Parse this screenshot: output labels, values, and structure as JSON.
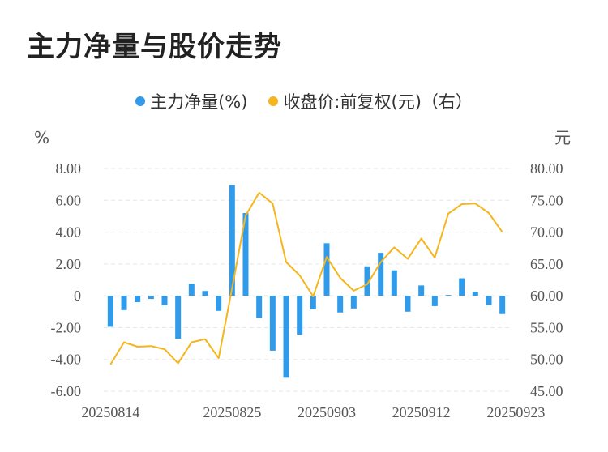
{
  "title": "主力净量与股价走势",
  "legend": [
    {
      "label": "主力净量(%)",
      "color": "#2f9bea"
    },
    {
      "label": "收盘价:前复权(元)（右）",
      "color": "#f5b51c"
    }
  ],
  "chart_data": {
    "type": "bar",
    "left_unit": "%",
    "right_unit": "元",
    "left_ticks": [
      "8.00",
      "6.00",
      "4.00",
      "2.00",
      "0",
      "-2.00",
      "-4.00",
      "-6.00"
    ],
    "right_ticks": [
      "80.00",
      "75.00",
      "70.00",
      "65.00",
      "60.00",
      "55.00",
      "50.00",
      "45.00"
    ],
    "ylim_left": [
      -6,
      8
    ],
    "ylim_right": [
      45,
      80
    ],
    "x_tick_labels": [
      "20250814",
      "20250825",
      "20250903",
      "20250912",
      "20250923"
    ],
    "x_tick_index": [
      0,
      9,
      16,
      23,
      30
    ],
    "series": [
      {
        "name": "主力净量(%)",
        "type": "bar",
        "color": "#2f9bea",
        "values": [
          -1.95,
          -0.9,
          -0.4,
          -0.2,
          -0.6,
          -2.7,
          0.75,
          0.3,
          -0.95,
          6.95,
          5.2,
          -1.4,
          -3.45,
          -5.15,
          -2.45,
          -0.85,
          3.3,
          -1.05,
          -0.8,
          1.85,
          2.7,
          1.6,
          -1.0,
          0.65,
          -0.65,
          0.05,
          1.1,
          0.25,
          -0.6,
          -1.15
        ]
      },
      {
        "name": "收盘价:前复权(元)（右）",
        "type": "line",
        "color": "#f5b51c",
        "values": [
          49.2,
          52.7,
          52.0,
          52.1,
          51.6,
          49.4,
          52.7,
          53.2,
          50.2,
          61.2,
          72.6,
          76.2,
          74.5,
          65.3,
          63.2,
          59.9,
          66.1,
          62.8,
          60.8,
          61.8,
          65.3,
          67.6,
          65.8,
          69.0,
          66.0,
          72.9,
          74.4,
          74.5,
          73.0,
          70.0
        ]
      }
    ]
  }
}
